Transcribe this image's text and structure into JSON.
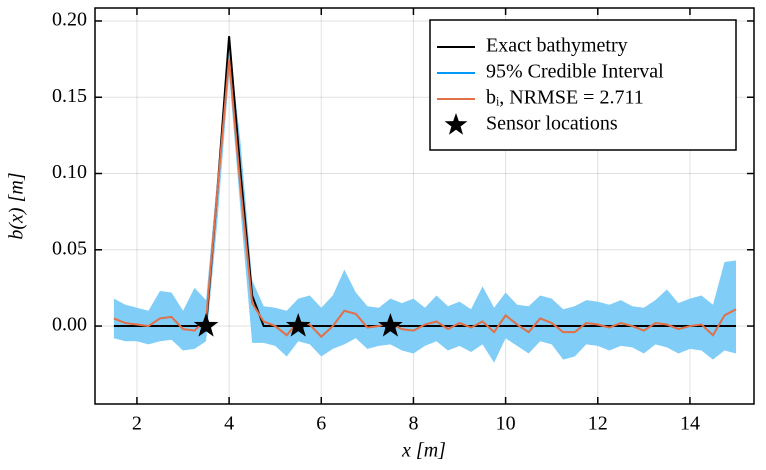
{
  "chart_data": {
    "type": "line",
    "xlabel": "x [m]",
    "ylabel": "b(x) [m]",
    "x": [
      1.5,
      1.75,
      2,
      2.25,
      2.5,
      2.75,
      3,
      3.25,
      3.5,
      3.75,
      4,
      4.25,
      4.5,
      4.75,
      5,
      5.25,
      5.5,
      5.75,
      6,
      6.25,
      6.5,
      6.75,
      7,
      7.25,
      7.5,
      7.75,
      8,
      8.25,
      8.5,
      8.75,
      9,
      9.25,
      9.5,
      9.75,
      10,
      10.25,
      10.5,
      10.75,
      11,
      11.25,
      11.5,
      11.75,
      12,
      12.25,
      12.5,
      12.75,
      13,
      13.25,
      13.5,
      13.75,
      14,
      14.25,
      14.5,
      14.75,
      15
    ],
    "series": [
      {
        "name": "Exact bathymetry",
        "color": "#000000",
        "values": [
          0,
          0,
          0,
          0,
          0,
          0,
          0,
          0,
          0,
          0.09,
          0.19,
          0.1,
          0.02,
          0,
          0,
          0,
          0,
          0,
          0,
          0,
          0,
          0,
          0,
          0,
          0,
          0,
          0,
          0,
          0,
          0,
          0,
          0,
          0,
          0,
          0,
          0,
          0,
          0,
          0,
          0,
          0,
          0,
          0,
          0,
          0,
          0,
          0,
          0,
          0,
          0,
          0,
          0,
          0,
          0,
          0
        ]
      },
      {
        "name": "95% Credible Interval",
        "color": "#009af9",
        "fill_color": "#80cdf8",
        "upper": [
          0.018,
          0.014,
          0.012,
          0.01,
          0.023,
          0.022,
          0.01,
          0.025,
          0.017,
          0.1,
          0.186,
          0.12,
          0.03,
          0.013,
          0.012,
          0.01,
          0.018,
          0.02,
          0.012,
          0.02,
          0.037,
          0.022,
          0.013,
          0.012,
          0.018,
          0.015,
          0.018,
          0.012,
          0.02,
          0.013,
          0.016,
          0.011,
          0.026,
          0.012,
          0.022,
          0.014,
          0.013,
          0.02,
          0.018,
          0.011,
          0.013,
          0.017,
          0.016,
          0.014,
          0.017,
          0.013,
          0.012,
          0.017,
          0.024,
          0.015,
          0.018,
          0.02,
          0.014,
          0.042,
          0.043
        ],
        "lower": [
          -0.008,
          -0.01,
          -0.01,
          -0.012,
          -0.01,
          -0.009,
          -0.016,
          -0.015,
          -0.01,
          0.07,
          0.165,
          0.075,
          -0.011,
          -0.011,
          -0.013,
          -0.02,
          -0.01,
          -0.012,
          -0.02,
          -0.015,
          -0.012,
          -0.008,
          -0.015,
          -0.013,
          -0.012,
          -0.016,
          -0.018,
          -0.013,
          -0.01,
          -0.016,
          -0.013,
          -0.017,
          -0.012,
          -0.024,
          -0.008,
          -0.013,
          -0.018,
          -0.01,
          -0.012,
          -0.022,
          -0.02,
          -0.012,
          -0.013,
          -0.016,
          -0.013,
          -0.014,
          -0.018,
          -0.012,
          -0.014,
          -0.018,
          -0.015,
          -0.016,
          -0.022,
          -0.016,
          -0.018
        ]
      },
      {
        "name": "bᵢ,  NRMSE = 2.711",
        "color": "#e26f46",
        "values": [
          0.005,
          0.002,
          0.001,
          0,
          0.005,
          0.006,
          -0.002,
          -0.003,
          0.004,
          0.09,
          0.175,
          0.09,
          0.015,
          0.003,
          0,
          -0.006,
          0.003,
          0.001,
          -0.007,
          0,
          0.01,
          0.008,
          -0.001,
          0,
          0.002,
          -0.002,
          -0.003,
          0.001,
          0.003,
          -0.002,
          0.002,
          -0.001,
          0.003,
          -0.004,
          0.007,
          0.001,
          -0.004,
          0.005,
          0.002,
          -0.004,
          -0.004,
          0.002,
          0.001,
          -0.001,
          0.002,
          0,
          -0.003,
          0.002,
          0.001,
          -0.002,
          0,
          0.001,
          -0.006,
          0.007,
          0.011
        ]
      }
    ],
    "sensors": {
      "name": "Sensor locations",
      "color": "#000000",
      "x": [
        3.5,
        5.5,
        7.5
      ],
      "values": [
        0,
        0,
        0
      ]
    },
    "xlim": [
      1.09,
      15.39
    ],
    "ylim": [
      -0.0511,
      0.2085
    ],
    "xticks": [
      2,
      4,
      6,
      8,
      10,
      12,
      14
    ],
    "yticks": [
      {
        "value": 0,
        "label": "0.00"
      },
      0.05,
      {
        "value": 0.1,
        "label": "0.10"
      },
      0.15,
      {
        "value": 0.2,
        "label": "0.20"
      }
    ],
    "grid": true,
    "legend": "top-right"
  }
}
